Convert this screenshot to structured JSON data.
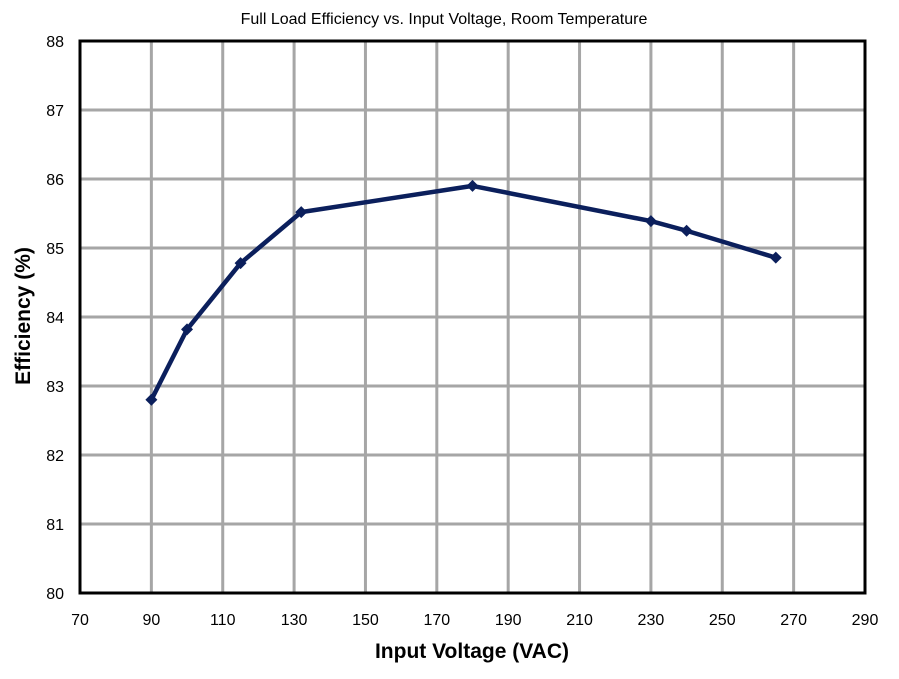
{
  "chart_data": {
    "type": "line",
    "title": "Full Load Efficiency vs. Input Voltage, Room Temperature",
    "xlabel": "Input Voltage (VAC)",
    "ylabel": "Efficiency (%)",
    "xlim": [
      70,
      290
    ],
    "ylim": [
      80,
      88
    ],
    "xticks": [
      "70",
      "90",
      "110",
      "130",
      "150",
      "170",
      "190",
      "210",
      "230",
      "250",
      "270",
      "290"
    ],
    "yticks": [
      "80",
      "81",
      "82",
      "83",
      "84",
      "85",
      "86",
      "87",
      "88"
    ],
    "grid": true,
    "legend": "none",
    "series": [
      {
        "x": [
          90,
          100,
          115,
          132,
          180,
          230,
          240,
          265
        ],
        "y": [
          82.8,
          83.82,
          84.78,
          85.52,
          85.9,
          85.39,
          85.25,
          84.86
        ],
        "color": "#0b1f5c"
      }
    ]
  }
}
